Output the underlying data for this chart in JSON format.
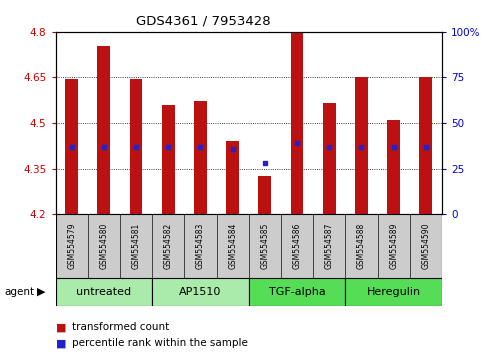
{
  "title": "GDS4361 / 7953428",
  "samples": [
    "GSM554579",
    "GSM554580",
    "GSM554581",
    "GSM554582",
    "GSM554583",
    "GSM554584",
    "GSM554585",
    "GSM554586",
    "GSM554587",
    "GSM554588",
    "GSM554589",
    "GSM554590"
  ],
  "bar_values": [
    4.644,
    4.755,
    4.646,
    4.56,
    4.572,
    4.44,
    4.325,
    4.8,
    4.565,
    4.65,
    4.51,
    4.65
  ],
  "percentile_values": [
    4.42,
    4.42,
    4.42,
    4.42,
    4.42,
    4.415,
    4.37,
    4.435,
    4.42,
    4.42,
    4.42,
    4.42
  ],
  "ylim_left": [
    4.2,
    4.8
  ],
  "ylim_right": [
    0,
    100
  ],
  "yticks_left": [
    4.2,
    4.35,
    4.5,
    4.65,
    4.8
  ],
  "yticks_right": [
    0,
    25,
    50,
    75,
    100
  ],
  "ytick_labels_left": [
    "4.2",
    "4.35",
    "4.5",
    "4.65",
    "4.8"
  ],
  "ytick_labels_right": [
    "0",
    "25",
    "50",
    "75",
    "100%"
  ],
  "bar_color": "#BB1111",
  "percentile_color": "#2222CC",
  "bar_bottom": 4.2,
  "groups": [
    {
      "label": "untreated",
      "start": 0,
      "end": 3
    },
    {
      "label": "AP1510",
      "start": 3,
      "end": 6
    },
    {
      "label": "TGF-alpha",
      "start": 6,
      "end": 9
    },
    {
      "label": "Heregulin",
      "start": 9,
      "end": 12
    }
  ],
  "label_bg_color": "#cccccc",
  "group_color_light": "#aaeaaa",
  "group_color_dark": "#55dd55",
  "left_tick_color": "#CC0000",
  "right_tick_color": "#0000CC",
  "bar_width": 0.4
}
